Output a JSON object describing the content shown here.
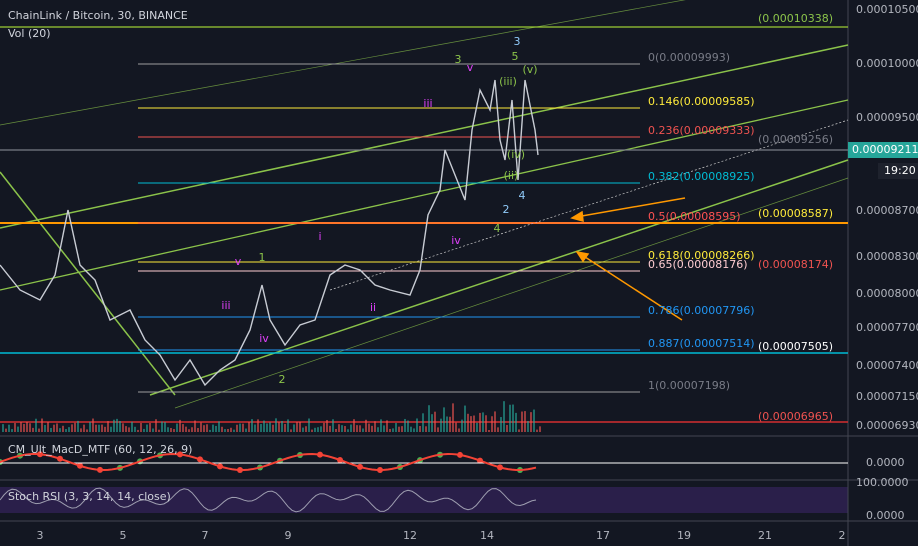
{
  "header": {
    "title": "ChainLink / Bitcoin, 30, BINANCE",
    "volume": "Vol (20)"
  },
  "price_axis": {
    "labels": [
      "0.00010500",
      "0.00010000",
      "0.00009500",
      "0.00008700",
      "0.00008300",
      "0.00008000",
      "0.00007700",
      "0.00007400",
      "0.00007150",
      "0.00006930"
    ],
    "last_price": "0.00009211",
    "countdown": "19:20"
  },
  "time_axis": {
    "labels": [
      "3",
      "5",
      "7",
      "9",
      "12",
      "14",
      "17",
      "19",
      "21",
      "2"
    ]
  },
  "fib_levels": [
    "0(0.00009993)",
    "0.146(0.00009585)",
    "0.236(0.00009333)",
    "0.382(0.00008925)",
    "0.5(0.00008595)",
    "0.618(0.00008266)",
    "0.65(0.00008176)",
    "0.786(0.00007796)",
    "0.887(0.00007514)",
    "1(0.00007198)"
  ],
  "price_lines": [
    "(0.00010338)",
    "(0.00009256)",
    "(0.00008587)",
    "(0.00008174)",
    "(0.00007505)",
    "(0.00006965)"
  ],
  "waves": [
    "3",
    "v",
    "3",
    "5",
    "(v)",
    "(iii)",
    "iii",
    "(iv)",
    "(ii)",
    "2",
    "4",
    "4",
    "iv",
    "i",
    "v",
    "1",
    "iii",
    "iv",
    "ii",
    "2"
  ],
  "indicators": {
    "macd": {
      "title": "CM_Ult_MacD_MTF (60, 12, 26, 9)",
      "axis": "0.0000"
    },
    "stoch": {
      "title": "Stoch RSI (3, 3, 14, 14, close)",
      "axis": [
        "100.0000",
        "0.0000"
      ]
    }
  }
}
